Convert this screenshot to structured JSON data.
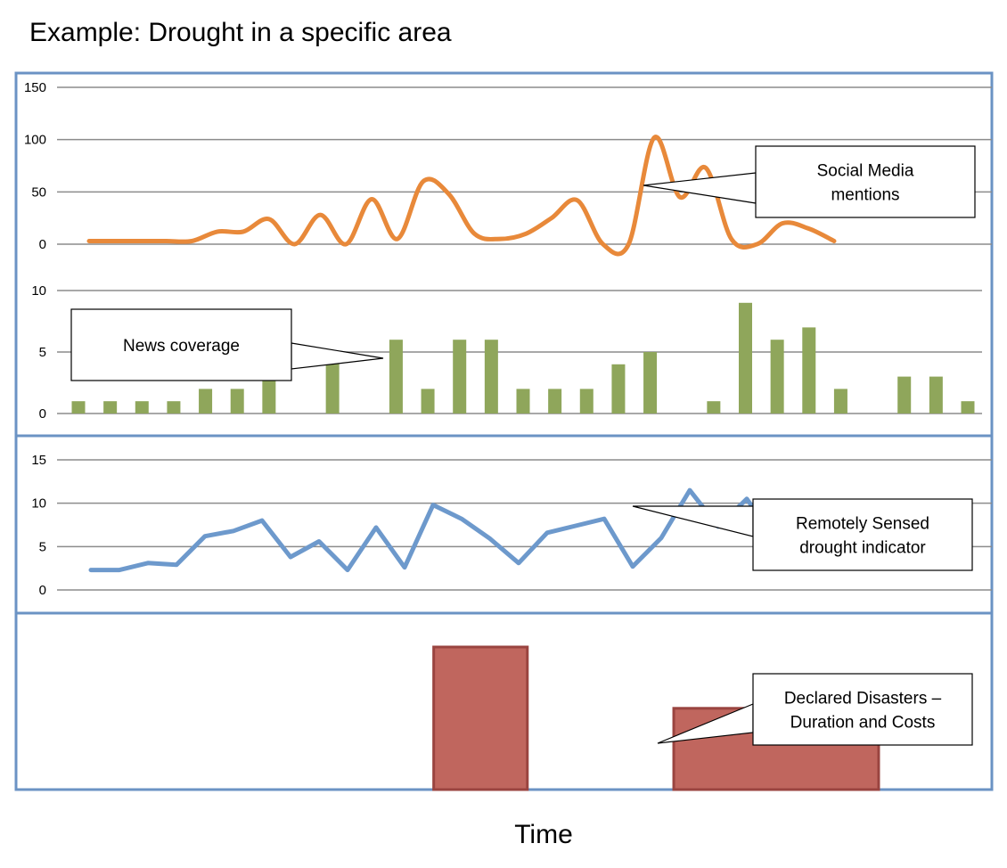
{
  "figure": {
    "title": "Example: Drought in a specific area",
    "xlabel": "Time"
  },
  "colors": {
    "frame": "#6b93c4",
    "grid": "#8c8c8c",
    "social": "#e8893a",
    "news": "#8fa65b",
    "sensed": "#6d99cc",
    "disaster_fill": "#c0665e",
    "disaster_edge": "#9a4440"
  },
  "chart_data": [
    {
      "type": "line",
      "name": "social-media",
      "callout": [
        "Social Media",
        "mentions"
      ],
      "ylim": [
        0,
        150
      ],
      "yticks": [
        0,
        50,
        100,
        150
      ],
      "smooth": true,
      "values": [
        3,
        3,
        3,
        3,
        3,
        12,
        12,
        24,
        0,
        28,
        0,
        43,
        5,
        60,
        48,
        10,
        5,
        10,
        25,
        42,
        0,
        0,
        102,
        45,
        73,
        5,
        0,
        20,
        15,
        3
      ]
    },
    {
      "type": "bar",
      "name": "news-coverage",
      "callout": [
        "News coverage"
      ],
      "ylim": [
        0,
        10
      ],
      "yticks": [
        0,
        5,
        10
      ],
      "values": [
        1,
        1,
        1,
        1,
        2,
        2,
        3,
        0,
        5,
        0,
        6,
        2,
        6,
        6,
        2,
        2,
        2,
        4,
        5,
        0,
        1,
        9,
        6,
        7,
        2,
        0,
        3,
        3,
        1
      ]
    },
    {
      "type": "line",
      "name": "remotely-sensed",
      "callout": [
        "Remotely Sensed",
        "drought indicator"
      ],
      "ylim": [
        0,
        15
      ],
      "yticks": [
        0,
        5,
        10,
        15
      ],
      "values": [
        2.3,
        2.3,
        3.1,
        2.9,
        6.2,
        6.8,
        8.0,
        3.8,
        5.6,
        2.3,
        7.2,
        2.6,
        9.8,
        8.2,
        5.9,
        3.1,
        6.6,
        7.4,
        8.2,
        2.7,
        6.0,
        11.5,
        7.3,
        10.5,
        5.8
      ]
    },
    {
      "type": "bar",
      "name": "declared-disasters",
      "callout": [
        "Declared Disasters –",
        "Duration and Costs"
      ],
      "ylim": [
        0,
        1
      ],
      "bars": [
        {
          "start": 0.428,
          "end": 0.524,
          "value": 1.0
        },
        {
          "start": 0.674,
          "end": 0.884,
          "value": 0.57
        }
      ]
    }
  ]
}
